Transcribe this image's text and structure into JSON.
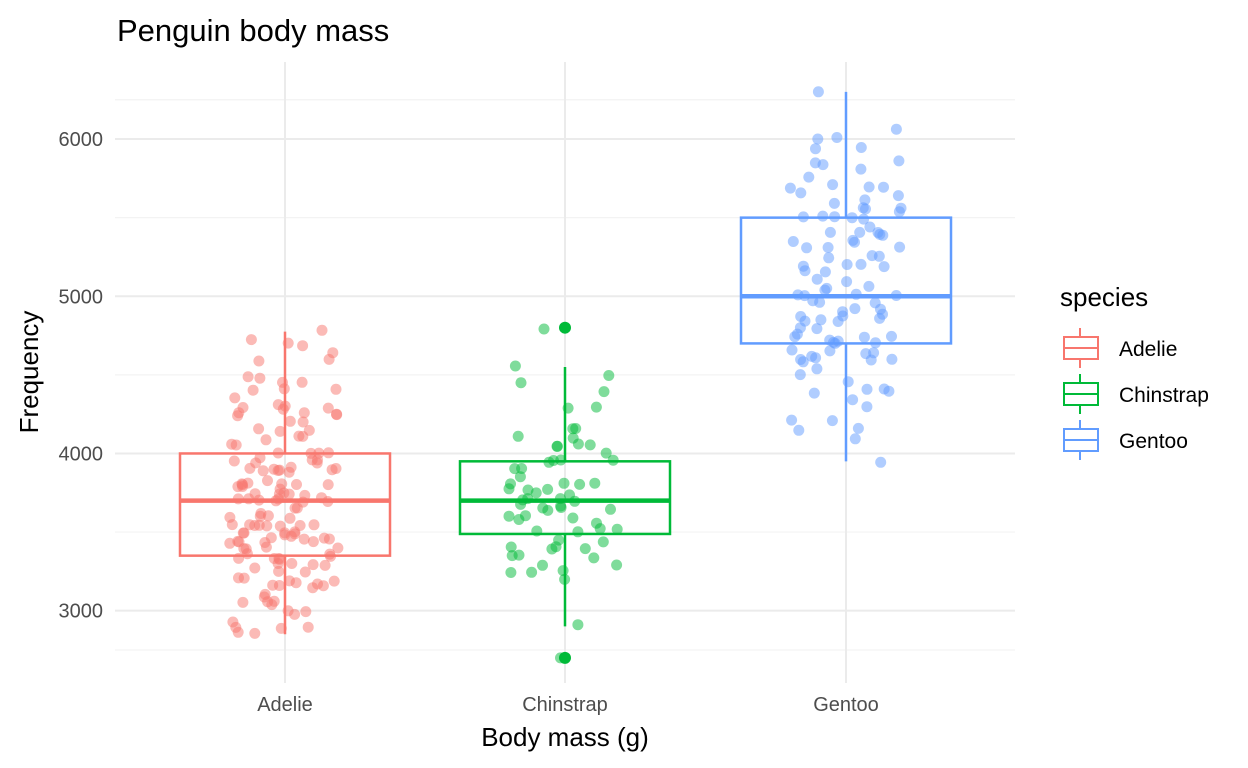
{
  "chart_data": {
    "type": "boxplot",
    "title": "Penguin body mass",
    "xlabel": "Body mass (g)",
    "ylabel": "Frequency",
    "categories": [
      "Adelie",
      "Chinstrap",
      "Gentoo"
    ],
    "ylim": [
      2540,
      6490
    ],
    "yticks": [
      3000,
      4000,
      5000,
      6000
    ],
    "grid": true,
    "legend": {
      "title": "species",
      "position": "right"
    },
    "colors": {
      "Adelie": "#F8766D",
      "Chinstrap": "#00BA38",
      "Gentoo": "#619CFF"
    },
    "boxes": [
      {
        "name": "Adelie",
        "min": 2850,
        "q1": 3350,
        "median": 3700,
        "q3": 4000,
        "max": 4775,
        "outliers": []
      },
      {
        "name": "Chinstrap",
        "min": 2900,
        "q1": 3488,
        "median": 3700,
        "q3": 3950,
        "max": 4550,
        "outliers": [
          2700,
          4800
        ]
      },
      {
        "name": "Gentoo",
        "min": 3950,
        "q1": 4700,
        "median": 5000,
        "q3": 5500,
        "max": 6300,
        "outliers": []
      }
    ],
    "points": {
      "Adelie": [
        3750,
        3800,
        3250,
        3450,
        3650,
        3625,
        4675,
        3475,
        4250,
        3300,
        3700,
        3200,
        3800,
        4400,
        3700,
        3450,
        4500,
        3325,
        4200,
        3400,
        3600,
        3800,
        3950,
        3800,
        3800,
        3550,
        3200,
        3150,
        3950,
        3250,
        3900,
        3300,
        3900,
        3325,
        4150,
        3950,
        3550,
        3300,
        4650,
        3150,
        3900,
        3100,
        4400,
        3000,
        4600,
        3425,
        2975,
        3450,
        4150,
        3500,
        4300,
        3450,
        4050,
        2900,
        3700,
        3550,
        3800,
        2850,
        3750,
        3150,
        4400,
        3600,
        4050,
        2850,
        3950,
        3350,
        4100,
        3050,
        4450,
        3600,
        3900,
        3550,
        4150,
        3700,
        4250,
        3700,
        3900,
        3550,
        4000,
        3200,
        4700,
        3800,
        4200,
        3350,
        3550,
        3800,
        3500,
        3950,
        3600,
        3550,
        4300,
        3400,
        4450,
        3300,
        4300,
        3700,
        4350,
        2900,
        4100,
        3725,
        4725,
        3075,
        4250,
        2925,
        3550,
        3750,
        3900,
        3175,
        4775,
        3825,
        4600,
        3200,
        4275,
        3900,
        4075,
        2900,
        3775,
        3350,
        3325,
        3150,
        3500,
        3450,
        3875,
        3050,
        4000,
        3275,
        4300,
        3050,
        4000,
        3325,
        3500,
        3500,
        4475,
        3425,
        3900,
        3175,
        3975,
        3400,
        4250,
        3400,
        3475,
        3050,
        3725,
        3000,
        3650,
        4250,
        3475,
        3450,
        3750,
        3700,
        4000
      ],
      "Chinstrap": [
        3500,
        3900,
        3650,
        3525,
        3725,
        3950,
        3250,
        3750,
        4150,
        3700,
        3800,
        3775,
        3700,
        4050,
        3575,
        4050,
        3300,
        3700,
        3450,
        4400,
        3600,
        3400,
        2900,
        3800,
        3300,
        4150,
        3400,
        3800,
        3700,
        4550,
        3200,
        4300,
        3350,
        4100,
        3600,
        3900,
        3850,
        4800,
        2700,
        4500,
        3950,
        3650,
        3550,
        3500,
        3675,
        4450,
        3400,
        4300,
        3250,
        3675,
        3325,
        3950,
        3600,
        4050,
        3350,
        3450,
        3250,
        4050,
        3800,
        3525,
        3950,
        3650,
        3650,
        4000,
        3400,
        3775,
        4100,
        3775
      ],
      "Gentoo": [
        4500,
        5700,
        4450,
        5700,
        5400,
        4550,
        4800,
        5200,
        4400,
        5150,
        4650,
        5550,
        4650,
        5850,
        4200,
        5850,
        4150,
        6300,
        4800,
        5350,
        5700,
        5000,
        4400,
        5050,
        5000,
        5100,
        4100,
        5650,
        4600,
        5550,
        5250,
        4700,
        5050,
        6050,
        5150,
        5400,
        4950,
        5250,
        4350,
        5350,
        3950,
        5700,
        4300,
        4750,
        5550,
        4900,
        4200,
        5400,
        5100,
        5300,
        4850,
        5300,
        4400,
        5000,
        4600,
        5050,
        4150,
        5200,
        4700,
        5800,
        4600,
        6000,
        4750,
        5950,
        4625,
        5450,
        4725,
        5350,
        4750,
        5600,
        4600,
        5300,
        4875,
        5550,
        4950,
        5400,
        4750,
        5650,
        4850,
        5200,
        4925,
        4875,
        4625,
        5250,
        4850,
        5600,
        4975,
        5500,
        4725,
        5500,
        4700,
        5500,
        4575,
        5500,
        5000,
        5950,
        4650,
        5500,
        4375,
        5850,
        4875,
        6000,
        4925,
        4850,
        5750,
        5200,
        5400
      ]
    }
  }
}
